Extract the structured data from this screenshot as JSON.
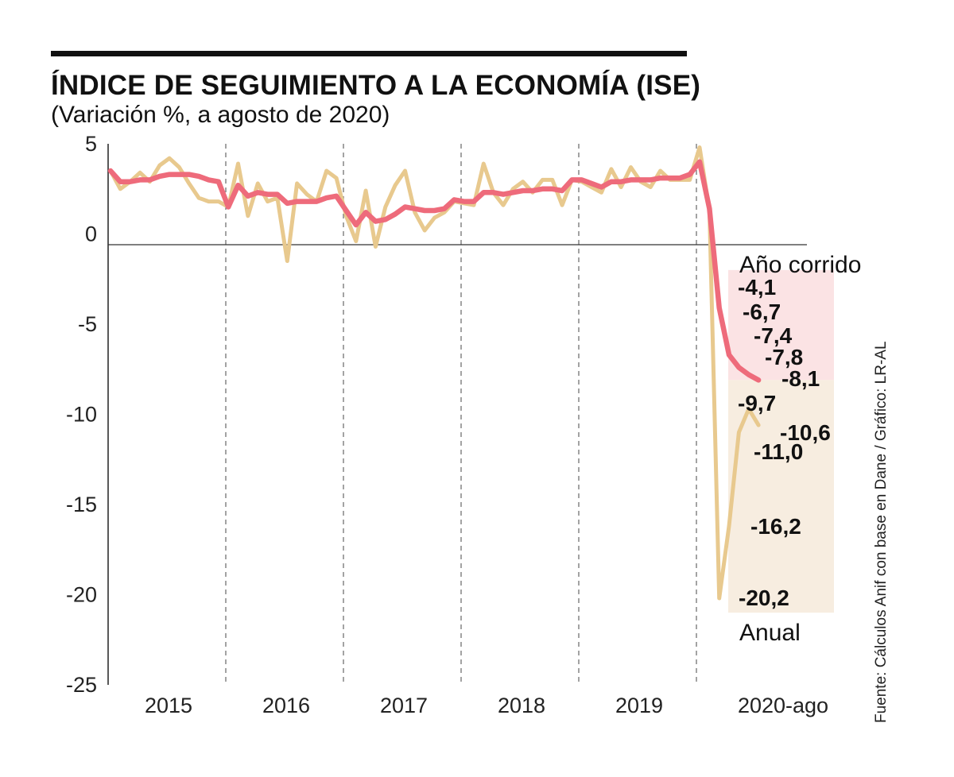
{
  "header": {
    "title": "ÍNDICE DE SEGUIMIENTO A LA ECONOMÍA (ISE)",
    "subtitle": "(Variación %, a agosto de 2020)"
  },
  "source": "Fuente: Cálculos Anif con base en Dane / Gráfico: LR-AL",
  "chart_data": {
    "type": "line",
    "title": "ÍNDICE DE SEGUIMIENTO A LA ECONOMÍA (ISE)",
    "subtitle": "(Variación %, a agosto de 2020)",
    "xlabel": "",
    "ylabel": "",
    "ylim": [
      -25,
      5
    ],
    "yticks": [
      5,
      0,
      -5,
      -10,
      -15,
      -20,
      -25
    ],
    "year_labels": [
      "2015",
      "2016",
      "2017",
      "2018",
      "2019",
      "2020-ago"
    ],
    "months_per_year": 12,
    "grid": "vertical dashed separators between years",
    "series": [
      {
        "name": "Anual",
        "color": "#e8c98e",
        "values": [
          3.5,
          2.5,
          2.9,
          3.4,
          2.9,
          3.8,
          4.2,
          3.7,
          2.8,
          2.0,
          1.8,
          1.8,
          1.5,
          3.9,
          1.0,
          2.8,
          1.8,
          2.0,
          -1.5,
          2.8,
          2.2,
          1.8,
          3.5,
          3.1,
          1.0,
          -0.4,
          2.4,
          -0.7,
          1.5,
          2.7,
          3.5,
          1.2,
          0.2,
          0.9,
          1.2,
          1.8,
          1.7,
          1.6,
          3.9,
          2.3,
          1.6,
          2.5,
          2.9,
          2.3,
          3.0,
          3.0,
          1.6,
          3.0,
          2.9,
          2.6,
          2.3,
          3.6,
          2.6,
          3.7,
          2.9,
          2.6,
          3.5,
          3.0,
          3.0,
          3.0,
          4.8,
          1.3,
          -20.2,
          -16.2,
          -11.0,
          -9.7,
          -10.6
        ],
        "labels": [
          -20.2,
          -16.2,
          -11.0,
          -9.7,
          -10.6
        ],
        "label_texts": [
          "-20,2",
          "-16,2",
          "-11,0",
          "-9,7",
          "-10,6"
        ]
      },
      {
        "name": "Año corrido",
        "color": "#ee6b7b",
        "values": [
          3.5,
          2.9,
          2.9,
          3.0,
          3.0,
          3.2,
          3.3,
          3.3,
          3.3,
          3.2,
          3.0,
          2.9,
          1.5,
          2.7,
          2.1,
          2.3,
          2.2,
          2.2,
          1.7,
          1.8,
          1.8,
          1.8,
          2.0,
          2.1,
          1.3,
          0.5,
          1.2,
          0.7,
          0.8,
          1.1,
          1.5,
          1.4,
          1.3,
          1.3,
          1.4,
          1.9,
          1.8,
          1.8,
          2.3,
          2.3,
          2.2,
          2.3,
          2.4,
          2.4,
          2.5,
          2.5,
          2.4,
          3.0,
          3.0,
          2.8,
          2.6,
          2.9,
          2.9,
          3.0,
          3.0,
          3.0,
          3.1,
          3.1,
          3.1,
          3.3,
          4.0,
          1.4,
          -4.1,
          -6.7,
          -7.4,
          -7.8,
          -8.1
        ],
        "labels": [
          -4.1,
          -6.7,
          -7.4,
          -7.8,
          -8.1
        ],
        "label_texts": [
          "-4,1",
          "-6,7",
          "-7,4",
          "-7,8",
          "-8,1"
        ]
      }
    ],
    "annotations": [
      {
        "text": "Año corrido",
        "range": [
          -8.1,
          -2.0
        ],
        "color": "#fbe3e4"
      },
      {
        "text": "Anual",
        "range": [
          -21.0,
          -8.1
        ],
        "color": "#f7ede0"
      }
    ]
  }
}
